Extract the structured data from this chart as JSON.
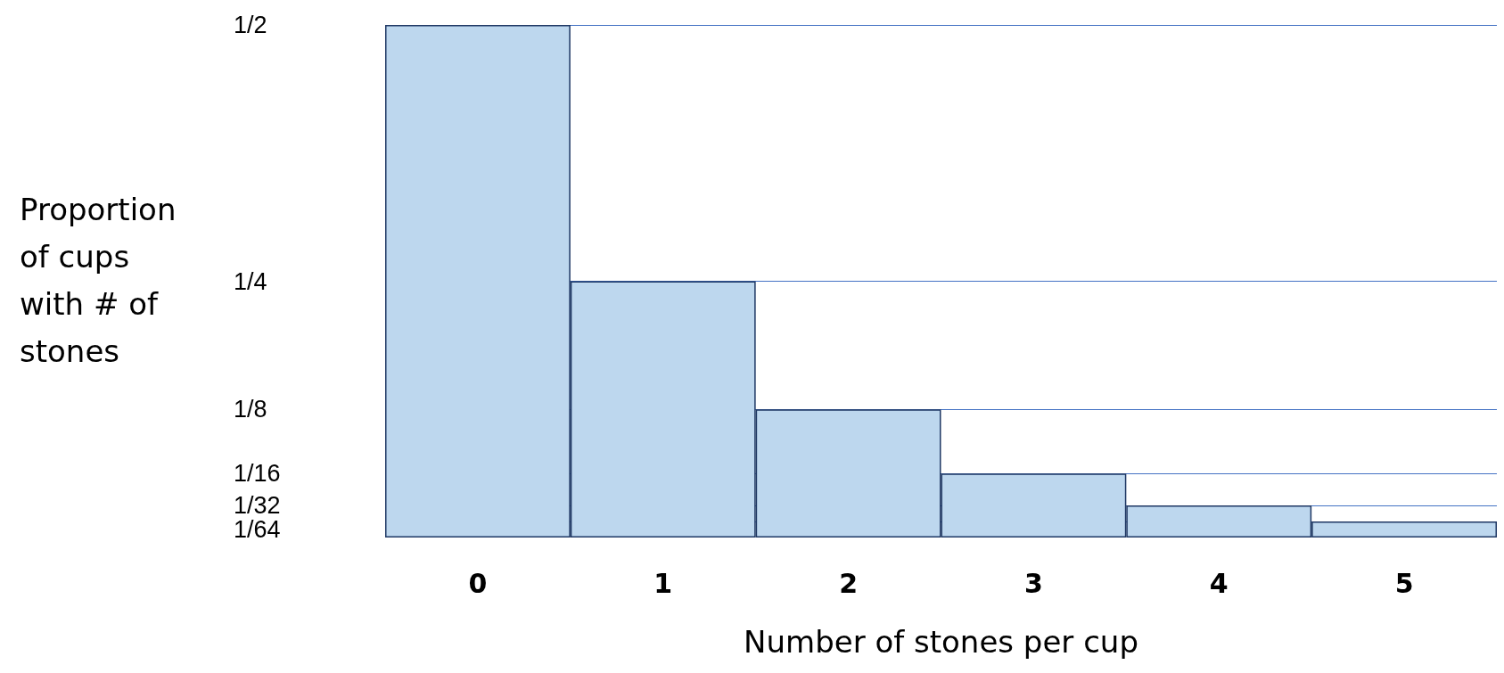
{
  "chart_data": {
    "type": "bar",
    "xlabel": "Number of stones per cup",
    "ylabel": "Proportion of cups with # of stones",
    "categories": [
      "0",
      "1",
      "2",
      "3",
      "4",
      "5"
    ],
    "values": [
      0.5,
      0.25,
      0.125,
      0.0625,
      0.03125,
      0.015625
    ],
    "color": "#bdd7ee",
    "ylim": [
      0,
      0.5
    ],
    "yticks": [
      {
        "value": 0.5,
        "label": "1/2"
      },
      {
        "value": 0.25,
        "label": "1/4"
      },
      {
        "value": 0.125,
        "label": "1/8"
      },
      {
        "value": 0.0625,
        "label": "1/16"
      },
      {
        "value": 0.03125,
        "label": "1/32"
      },
      {
        "value": 0.015625,
        "label": "1/64"
      }
    ],
    "grid": "y"
  }
}
